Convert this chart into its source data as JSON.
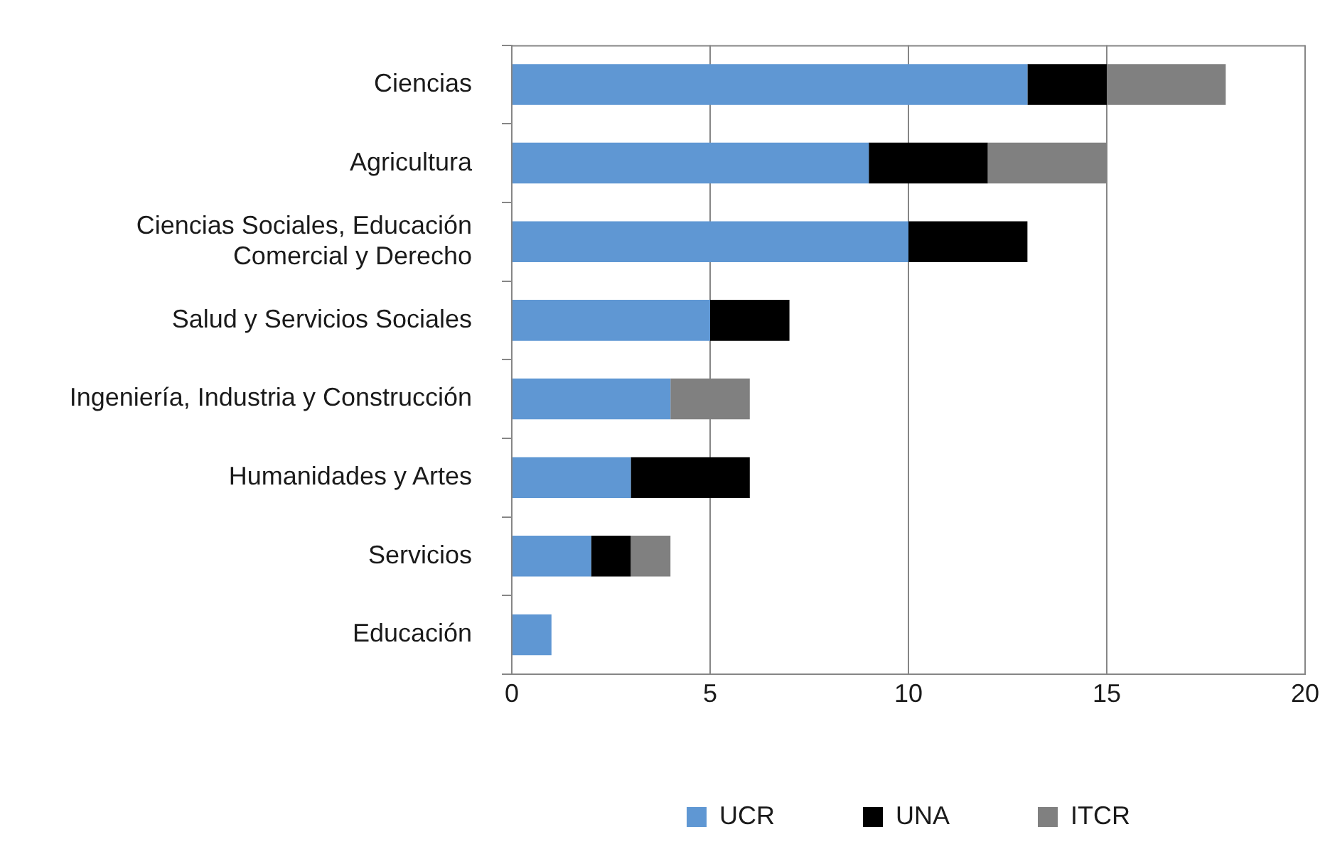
{
  "chart_data": {
    "type": "bar",
    "orientation": "horizontal",
    "stacked": true,
    "categories": [
      "Ciencias",
      "Agricultura",
      "Ciencias Sociales, Educación\nComercial y Derecho",
      "Salud y Servicios Sociales",
      "Ingeniería, Industria y Construcción",
      "Humanidades y Artes",
      "Servicios",
      "Educación"
    ],
    "series": [
      {
        "name": "UCR",
        "color": "#5f97d3",
        "values": [
          13,
          9,
          10,
          5,
          4,
          3,
          2,
          1
        ]
      },
      {
        "name": "UNA",
        "color": "#000000",
        "values": [
          2,
          3,
          3,
          2,
          null,
          3,
          1,
          null
        ]
      },
      {
        "name": "ITCR",
        "color": "#808080",
        "values": [
          3,
          3,
          null,
          null,
          2,
          null,
          1,
          null
        ]
      }
    ],
    "xlim": [
      0,
      20
    ],
    "xticks": [
      0,
      5,
      10,
      15,
      20
    ],
    "grid": "x",
    "legend": "bottom"
  }
}
